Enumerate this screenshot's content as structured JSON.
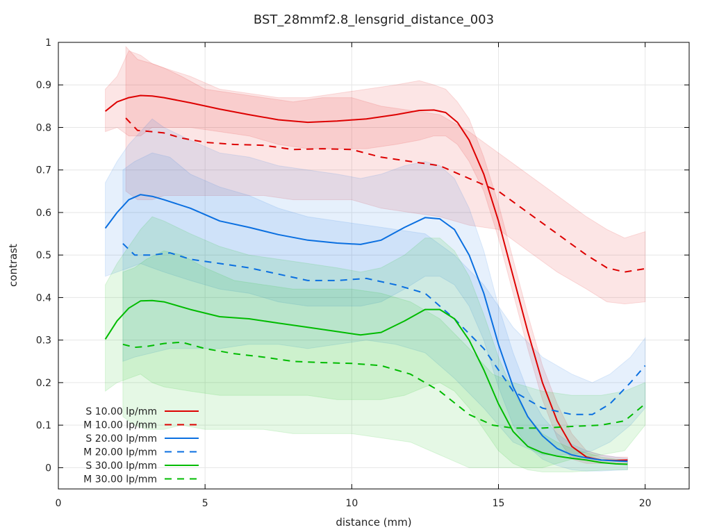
{
  "chart_data": {
    "type": "line",
    "title": "BST_28mmf2.8_lensgrid_distance_003",
    "xlabel": "distance (mm)",
    "ylabel": "contrast",
    "xlim": [
      0,
      21.5
    ],
    "ylim": [
      -0.05,
      1.0
    ],
    "xticks": [
      0,
      5,
      10,
      15,
      20
    ],
    "xtick_labels": [
      "0",
      "5",
      "10",
      "15",
      "20"
    ],
    "yticks": [
      0,
      0.1,
      0.2,
      0.3,
      0.4,
      0.5,
      0.6,
      0.7,
      0.8,
      0.9,
      1
    ],
    "ytick_labels": [
      "0",
      "0.1",
      "0.2",
      "0.3",
      "0.4",
      "0.5",
      "0.6",
      "0.7",
      "0.8",
      "0.9",
      "1"
    ],
    "grid": true,
    "legend_position": "bottom-left",
    "series": [
      {
        "name": "S 10.00 lp/mm",
        "color": "#dd0000",
        "dash": "solid",
        "x": [
          1.6,
          2.0,
          2.4,
          2.8,
          3.2,
          3.6,
          4.5,
          5.5,
          6.5,
          7.5,
          8.5,
          9.5,
          10.5,
          11.5,
          12.3,
          12.8,
          13.2,
          13.6,
          14.0,
          14.5,
          15.0,
          15.5,
          16.0,
          16.5,
          17.0,
          17.5,
          18.0,
          18.5,
          19.0,
          19.4
        ],
        "y": [
          0.838,
          0.86,
          0.87,
          0.875,
          0.874,
          0.87,
          0.858,
          0.843,
          0.83,
          0.818,
          0.812,
          0.815,
          0.82,
          0.83,
          0.84,
          0.841,
          0.835,
          0.812,
          0.77,
          0.69,
          0.58,
          0.45,
          0.32,
          0.2,
          0.11,
          0.05,
          0.025,
          0.018,
          0.017,
          0.018
        ],
        "band_upper": [
          0.89,
          0.92,
          0.98,
          0.97,
          0.95,
          0.94,
          0.92,
          0.89,
          0.88,
          0.87,
          0.87,
          0.88,
          0.89,
          0.9,
          0.91,
          0.9,
          0.89,
          0.86,
          0.82,
          0.73,
          0.62,
          0.49,
          0.36,
          0.24,
          0.15,
          0.08,
          0.04,
          0.03,
          0.025,
          0.025
        ],
        "band_lower": [
          0.79,
          0.8,
          0.78,
          0.78,
          0.8,
          0.8,
          0.8,
          0.79,
          0.78,
          0.76,
          0.75,
          0.75,
          0.75,
          0.76,
          0.77,
          0.78,
          0.78,
          0.76,
          0.72,
          0.65,
          0.54,
          0.41,
          0.28,
          0.16,
          0.07,
          0.02,
          0.01,
          0.01,
          0.01,
          0.01
        ]
      },
      {
        "name": "M 10.00 lp/mm",
        "color": "#dd0000",
        "dash": "dashed",
        "x": [
          2.3,
          2.7,
          3.2,
          3.6,
          4.2,
          5.0,
          6.0,
          7.0,
          8.0,
          9.0,
          10.0,
          11.0,
          12.0,
          13.0,
          14.0,
          15.0,
          16.0,
          17.0,
          18.0,
          18.7,
          19.3,
          20.0
        ],
        "y": [
          0.822,
          0.793,
          0.79,
          0.787,
          0.775,
          0.765,
          0.76,
          0.758,
          0.748,
          0.75,
          0.748,
          0.73,
          0.72,
          0.71,
          0.68,
          0.65,
          0.6,
          0.55,
          0.5,
          0.47,
          0.46,
          0.468
        ],
        "band_upper": [
          0.99,
          0.96,
          0.95,
          0.94,
          0.92,
          0.89,
          0.88,
          0.87,
          0.86,
          0.87,
          0.87,
          0.85,
          0.84,
          0.83,
          0.79,
          0.74,
          0.69,
          0.64,
          0.59,
          0.56,
          0.54,
          0.555
        ],
        "band_lower": [
          0.65,
          0.63,
          0.63,
          0.64,
          0.64,
          0.64,
          0.64,
          0.64,
          0.63,
          0.63,
          0.63,
          0.61,
          0.6,
          0.59,
          0.57,
          0.56,
          0.51,
          0.46,
          0.42,
          0.39,
          0.385,
          0.39
        ]
      },
      {
        "name": "S 20.00 lp/mm",
        "color": "#0a6fe0",
        "dash": "solid",
        "x": [
          1.6,
          2.0,
          2.4,
          2.8,
          3.2,
          3.6,
          4.5,
          5.5,
          6.5,
          7.5,
          8.5,
          9.5,
          10.3,
          11.0,
          11.8,
          12.5,
          13.0,
          13.5,
          14.0,
          14.5,
          15.0,
          15.5,
          16.0,
          16.5,
          17.0,
          17.5,
          18.0,
          18.5,
          19.0,
          19.4
        ],
        "y": [
          0.563,
          0.6,
          0.63,
          0.642,
          0.638,
          0.63,
          0.61,
          0.58,
          0.565,
          0.548,
          0.535,
          0.528,
          0.525,
          0.535,
          0.565,
          0.588,
          0.585,
          0.56,
          0.5,
          0.41,
          0.29,
          0.19,
          0.12,
          0.075,
          0.045,
          0.03,
          0.023,
          0.018,
          0.016,
          0.015
        ],
        "band_upper": [
          0.67,
          0.72,
          0.76,
          0.79,
          0.82,
          0.8,
          0.77,
          0.74,
          0.73,
          0.71,
          0.7,
          0.69,
          0.68,
          0.69,
          0.71,
          0.72,
          0.71,
          0.68,
          0.61,
          0.51,
          0.38,
          0.27,
          0.18,
          0.12,
          0.08,
          0.055,
          0.04,
          0.03,
          0.025,
          0.022
        ],
        "band_lower": [
          0.45,
          0.46,
          0.47,
          0.48,
          0.47,
          0.46,
          0.44,
          0.42,
          0.41,
          0.39,
          0.38,
          0.38,
          0.38,
          0.39,
          0.42,
          0.45,
          0.45,
          0.43,
          0.38,
          0.3,
          0.19,
          0.1,
          0.05,
          0.02,
          0.005,
          -0.005,
          -0.008,
          -0.008,
          -0.006,
          -0.005
        ]
      },
      {
        "name": "M 20.00 lp/mm",
        "color": "#0a6fe0",
        "dash": "dashed",
        "x": [
          2.2,
          2.6,
          3.2,
          3.8,
          4.5,
          5.5,
          6.5,
          7.5,
          8.5,
          9.5,
          10.5,
          11.5,
          12.5,
          13.5,
          14.5,
          15.5,
          16.5,
          17.5,
          18.2,
          18.8,
          19.5,
          20.0
        ],
        "y": [
          0.527,
          0.5,
          0.5,
          0.505,
          0.49,
          0.48,
          0.47,
          0.455,
          0.44,
          0.44,
          0.445,
          0.43,
          0.41,
          0.35,
          0.28,
          0.18,
          0.14,
          0.125,
          0.125,
          0.15,
          0.2,
          0.24
        ],
        "band_upper": [
          0.7,
          0.72,
          0.74,
          0.73,
          0.69,
          0.66,
          0.64,
          0.61,
          0.59,
          0.58,
          0.57,
          0.56,
          0.55,
          0.5,
          0.43,
          0.33,
          0.26,
          0.22,
          0.2,
          0.22,
          0.26,
          0.305
        ],
        "band_lower": [
          0.25,
          0.26,
          0.27,
          0.28,
          0.28,
          0.28,
          0.29,
          0.29,
          0.28,
          0.29,
          0.3,
          0.29,
          0.27,
          0.21,
          0.14,
          0.06,
          0.03,
          0.03,
          0.04,
          0.06,
          0.1,
          0.14
        ]
      },
      {
        "name": "S 30.00 lp/mm",
        "color": "#00bb00",
        "dash": "solid",
        "x": [
          1.6,
          2.0,
          2.4,
          2.8,
          3.2,
          3.6,
          4.5,
          5.5,
          6.5,
          7.5,
          8.5,
          9.5,
          10.3,
          11.0,
          11.8,
          12.5,
          13.0,
          13.5,
          14.0,
          14.5,
          15.0,
          15.5,
          16.0,
          16.5,
          17.0,
          17.5,
          18.0,
          18.5,
          19.0,
          19.4
        ],
        "y": [
          0.302,
          0.345,
          0.375,
          0.392,
          0.393,
          0.39,
          0.372,
          0.355,
          0.35,
          0.34,
          0.33,
          0.32,
          0.312,
          0.318,
          0.345,
          0.372,
          0.372,
          0.35,
          0.3,
          0.23,
          0.15,
          0.085,
          0.05,
          0.035,
          0.027,
          0.022,
          0.018,
          0.012,
          0.009,
          0.008
        ],
        "band_upper": [
          0.43,
          0.48,
          0.52,
          0.56,
          0.59,
          0.58,
          0.55,
          0.52,
          0.5,
          0.49,
          0.48,
          0.47,
          0.46,
          0.47,
          0.5,
          0.54,
          0.54,
          0.51,
          0.45,
          0.36,
          0.26,
          0.18,
          0.12,
          0.08,
          0.06,
          0.045,
          0.035,
          0.025,
          0.02,
          0.018
        ],
        "band_lower": [
          0.18,
          0.2,
          0.21,
          0.22,
          0.2,
          0.19,
          0.18,
          0.17,
          0.17,
          0.17,
          0.17,
          0.16,
          0.16,
          0.16,
          0.17,
          0.19,
          0.2,
          0.18,
          0.14,
          0.09,
          0.04,
          0.01,
          -0.005,
          -0.01,
          -0.01,
          -0.01,
          -0.008,
          -0.006,
          -0.005,
          -0.005
        ]
      },
      {
        "name": "M 30.00 lp/mm",
        "color": "#00bb00",
        "dash": "dashed",
        "x": [
          2.2,
          2.6,
          3.0,
          3.6,
          4.2,
          5.0,
          6.0,
          7.0,
          8.0,
          9.0,
          10.0,
          11.0,
          12.0,
          13.0,
          14.0,
          14.8,
          15.5,
          16.5,
          17.5,
          18.5,
          19.3,
          20.0
        ],
        "y": [
          0.29,
          0.283,
          0.285,
          0.292,
          0.295,
          0.28,
          0.268,
          0.26,
          0.25,
          0.247,
          0.245,
          0.24,
          0.22,
          0.18,
          0.125,
          0.1,
          0.093,
          0.093,
          0.097,
          0.1,
          0.11,
          0.15
        ],
        "band_upper": [
          0.46,
          0.47,
          0.49,
          0.51,
          0.5,
          0.47,
          0.44,
          0.43,
          0.42,
          0.42,
          0.42,
          0.41,
          0.39,
          0.35,
          0.28,
          0.22,
          0.2,
          0.18,
          0.17,
          0.17,
          0.18,
          0.2
        ],
        "band_lower": [
          0.12,
          0.1,
          0.09,
          0.09,
          0.1,
          0.09,
          0.09,
          0.09,
          0.08,
          0.08,
          0.08,
          0.07,
          0.06,
          0.03,
          0.0,
          0.0,
          0.0,
          0.0,
          0.02,
          0.03,
          0.04,
          0.1
        ]
      }
    ]
  }
}
